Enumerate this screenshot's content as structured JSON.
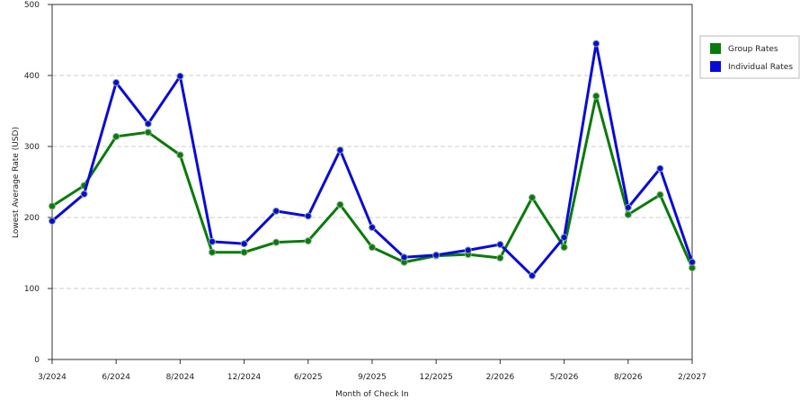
{
  "chart_data": {
    "type": "line",
    "x_label": "Month of Check In",
    "y_label": "Lowest Average Rate (USD)",
    "categories": [
      "3/2024",
      null,
      "6/2024",
      null,
      "8/2024",
      null,
      "12/2024",
      null,
      "6/2025",
      null,
      "9/2025",
      null,
      "12/2025",
      null,
      "2/2026",
      null,
      "5/2026",
      null,
      "8/2026",
      null,
      "2/2027"
    ],
    "series": [
      {
        "name": "Group Rates",
        "color": "#0a7a0a",
        "values": [
          216,
          245,
          314,
          320,
          288,
          151,
          151,
          165,
          167,
          218,
          158,
          137,
          146,
          148,
          143,
          228,
          158,
          371,
          204,
          232,
          129
        ]
      },
      {
        "name": "Individual Rates",
        "color": "#0a0ad8",
        "values": [
          195,
          233,
          390,
          332,
          399,
          166,
          163,
          209,
          202,
          295,
          186,
          144,
          147,
          154,
          162,
          118,
          172,
          445,
          214,
          269,
          137
        ]
      }
    ],
    "ylim": [
      0,
      500
    ],
    "yticks": [
      0,
      100,
      200,
      300,
      400,
      500
    ],
    "grid": true
  }
}
